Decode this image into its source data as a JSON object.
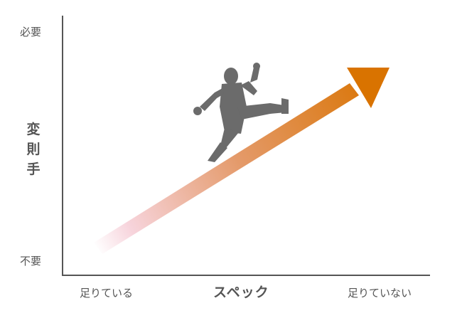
{
  "y_axis": {
    "title": [
      "変",
      "則",
      "手"
    ],
    "top_label": "必要",
    "bottom_label": "不要"
  },
  "x_axis": {
    "title": "スペック",
    "left_label": "足りている",
    "right_label": "足りていない"
  },
  "colors": {
    "axis": "#555555",
    "arrow_start": "#f7d4dc",
    "arrow_end": "#d97300",
    "figure": "#6b6b6b"
  },
  "figure_icon": "running-businessman-icon"
}
